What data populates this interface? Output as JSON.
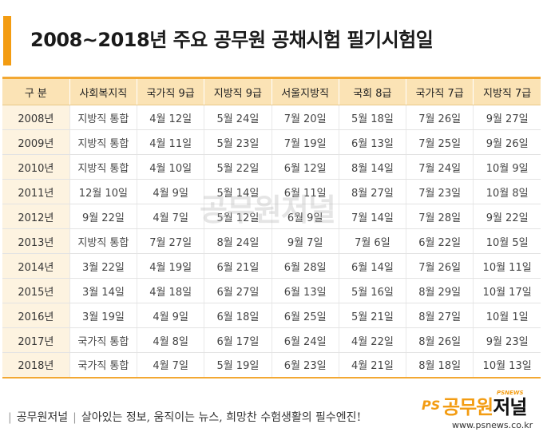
{
  "title": "2008~2018년 주요 공무원 공채시험 필기시험일",
  "columns": [
    "구  분",
    "사회복지직",
    "국가직 9급",
    "지방직 9급",
    "서울지방직",
    "국회 8급",
    "국가직 7급",
    "지방직 7급"
  ],
  "rows": [
    [
      "2008년",
      "지방직 통합",
      "4월 12일",
      "5월 24일",
      "7월 20일",
      "5월 18일",
      "7월 26일",
      "9월 27일"
    ],
    [
      "2009년",
      "지방직 통합",
      "4월 11일",
      "5월 23일",
      "7월 19일",
      "6월 13일",
      "7월 25일",
      "9월 26일"
    ],
    [
      "2010년",
      "지방직 통합",
      "4월 10일",
      "5월 22일",
      "6월 12일",
      "8월 14일",
      "7월 24일",
      "10월 9일"
    ],
    [
      "2011년",
      "12월 10일",
      "4월 9일",
      "5월 14일",
      "6월 11일",
      "8월 27일",
      "7월 23일",
      "10월 8일"
    ],
    [
      "2012년",
      "9월 22일",
      "4월 7일",
      "5월 12일",
      "6월 9일",
      "7월 14일",
      "7월 28일",
      "9월 22일"
    ],
    [
      "2013년",
      "지방직 통합",
      "7월 27일",
      "8월 24일",
      "9월 7일",
      "7월 6일",
      "6월 22일",
      "10월 5일"
    ],
    [
      "2014년",
      "3월 22일",
      "4월 19일",
      "6월 21일",
      "6월 28일",
      "6월 14일",
      "7월 26일",
      "10월 11일"
    ],
    [
      "2015년",
      "3월 14일",
      "4월 18일",
      "6월 27일",
      "6월 13일",
      "5월 16일",
      "8월 29일",
      "10월 17일"
    ],
    [
      "2016년",
      "3월 19일",
      "4월 9일",
      "6월 18일",
      "6월 25일",
      "5월 21일",
      "8월 27일",
      "10월 1일"
    ],
    [
      "2017년",
      "국가직 통합",
      "4월 8일",
      "6월 17일",
      "6월 24일",
      "4월 22일",
      "8월 26일",
      "9월 23일"
    ],
    [
      "2018년",
      "국가직 통합",
      "4월 7일",
      "5월 19일",
      "6월 23일",
      "4월 21일",
      "8월 18일",
      "10월 13일"
    ]
  ],
  "watermark": "공무원저널",
  "footer": {
    "brand": "공무원저널",
    "slogan": "살아있는 정보, 움직이는 뉴스, 희망찬 수험생활의 필수엔진!",
    "logo_ps": "PS",
    "logo_name_a": "공무원",
    "logo_name_b": "저널",
    "logo_tag": "PSNEWS",
    "url": "www.psnews.co.kr"
  },
  "colors": {
    "accent": "#f39c12",
    "header_bg": "#fbe3b5",
    "first_col_bg": "#fdf3e0"
  }
}
